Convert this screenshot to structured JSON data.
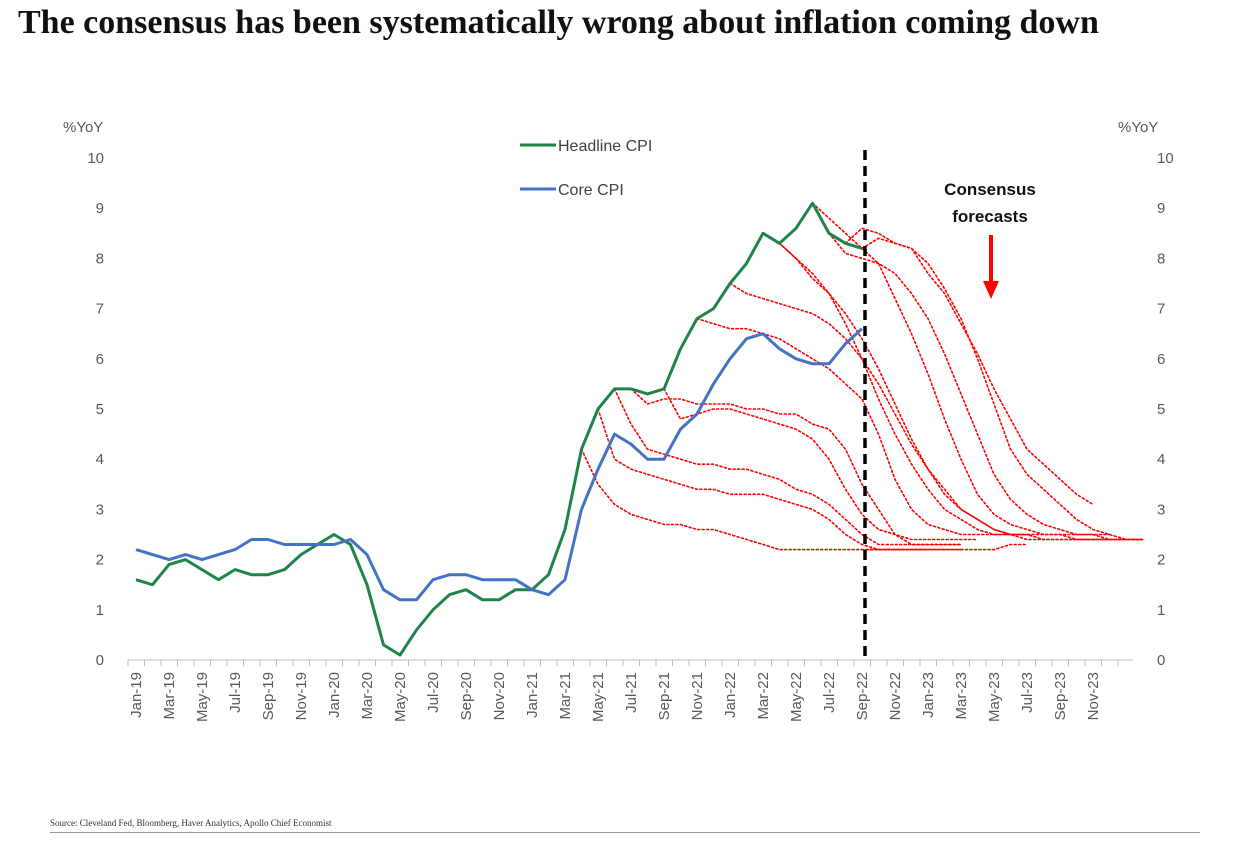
{
  "title": "The consensus has been systematically wrong about inflation coming down",
  "source": "Source: Cleveland Fed, Bloomberg, Haver Analytics, Apollo Chief Economist",
  "chart_data": {
    "type": "line",
    "y_axis_left_label": "%YoY",
    "y_axis_right_label": "%YoY",
    "ylim": [
      0,
      10
    ],
    "yticks": [
      0,
      1,
      2,
      3,
      4,
      5,
      6,
      7,
      8,
      9,
      10
    ],
    "x_start": "Jan-19",
    "x_tick_labels": [
      "Jan-19",
      "Mar-19",
      "May-19",
      "Jul-19",
      "Sep-19",
      "Nov-19",
      "Jan-20",
      "Mar-20",
      "May-20",
      "Jul-20",
      "Sep-20",
      "Nov-20",
      "Jan-21",
      "Mar-21",
      "May-21",
      "Jul-21",
      "Sep-21",
      "Nov-21",
      "Jan-22",
      "Mar-22",
      "May-22",
      "Jul-22",
      "Sep-22",
      "Nov-22",
      "Jan-23",
      "Mar-23",
      "May-23",
      "Jul-23",
      "Sep-23",
      "Nov-23"
    ],
    "x_months_total": 60,
    "grid": false,
    "legend_position": "top-center",
    "series": [
      {
        "name": "Headline CPI",
        "color": "#1e8449",
        "values": [
          1.6,
          1.5,
          1.9,
          2.0,
          1.8,
          1.6,
          1.8,
          1.7,
          1.7,
          1.8,
          2.1,
          2.3,
          2.5,
          2.3,
          1.5,
          0.3,
          0.1,
          0.6,
          1.0,
          1.3,
          1.4,
          1.2,
          1.2,
          1.4,
          1.4,
          1.7,
          2.6,
          4.2,
          5.0,
          5.4,
          5.4,
          5.3,
          5.4,
          6.2,
          6.8,
          7.0,
          7.5,
          7.9,
          8.5,
          8.3,
          8.6,
          9.1,
          8.5,
          8.3,
          8.2
        ]
      },
      {
        "name": "Core CPI",
        "color": "#4472c4",
        "values": [
          2.2,
          2.1,
          2.0,
          2.1,
          2.0,
          2.1,
          2.2,
          2.4,
          2.4,
          2.3,
          2.3,
          2.3,
          2.3,
          2.4,
          2.1,
          1.4,
          1.2,
          1.2,
          1.6,
          1.7,
          1.7,
          1.6,
          1.6,
          1.6,
          1.4,
          1.3,
          1.6,
          3.0,
          3.8,
          4.5,
          4.3,
          4.0,
          4.0,
          4.6,
          4.9,
          5.5,
          6.0,
          6.4,
          6.5,
          6.2,
          6.0,
          5.9,
          5.9,
          6.3,
          6.6
        ]
      }
    ],
    "forecast_color": "#ff0000",
    "forecasts": [
      {
        "start": 27,
        "values": [
          4.2,
          3.5,
          3.1,
          2.9,
          2.8,
          2.7,
          2.7,
          2.6,
          2.6,
          2.5,
          2.4,
          2.3,
          2.2,
          2.2,
          2.2,
          2.2,
          2.2,
          2.2,
          2.2,
          2.2,
          2.2,
          2.2
        ]
      },
      {
        "start": 28,
        "values": [
          5.0,
          4.0,
          3.8,
          3.7,
          3.6,
          3.5,
          3.4,
          3.4,
          3.3,
          3.3,
          3.3,
          3.2,
          3.1,
          3.0,
          2.8,
          2.5,
          2.3,
          2.2,
          2.2,
          2.2,
          2.2,
          2.2,
          2.2
        ]
      },
      {
        "start": 29,
        "values": [
          5.4,
          4.7,
          4.2,
          4.1,
          4.0,
          3.9,
          3.9,
          3.8,
          3.8,
          3.7,
          3.6,
          3.4,
          3.3,
          3.1,
          2.8,
          2.5,
          2.3,
          2.3,
          2.3,
          2.3,
          2.3,
          2.3
        ]
      },
      {
        "start": 30,
        "values": [
          5.4,
          5.1,
          5.2,
          5.2,
          5.1,
          5.1,
          5.1,
          5.0,
          5.0,
          4.9,
          4.9,
          4.7,
          4.6,
          4.2,
          3.5,
          3.0,
          2.5,
          2.3,
          2.3,
          2.3,
          2.3
        ]
      },
      {
        "start": 32,
        "values": [
          5.4,
          4.8,
          4.9,
          5.0,
          5.0,
          4.9,
          4.8,
          4.7,
          4.6,
          4.4,
          4.0,
          3.4,
          2.9,
          2.6,
          2.5,
          2.4,
          2.4,
          2.4,
          2.4,
          2.4
        ]
      },
      {
        "start": 34,
        "values": [
          6.8,
          6.7,
          6.6,
          6.6,
          6.5,
          6.4,
          6.2,
          6.0,
          5.8,
          5.5,
          5.2,
          4.5,
          3.6,
          3.0,
          2.7,
          2.6,
          2.5,
          2.5,
          2.5,
          2.5,
          2.5
        ]
      },
      {
        "start": 36,
        "values": [
          7.5,
          7.3,
          7.2,
          7.1,
          7.0,
          6.9,
          6.7,
          6.4,
          6.0,
          5.5,
          4.9,
          4.3,
          3.8,
          3.4,
          3.0,
          2.8,
          2.6,
          2.5,
          2.5,
          2.5,
          2.5,
          2.5,
          2.5,
          2.5
        ]
      },
      {
        "start": 38,
        "values": [
          8.5,
          8.3,
          8.0,
          7.7,
          7.3,
          6.7,
          6.0,
          5.2,
          4.5,
          3.9,
          3.4,
          3.0,
          2.8,
          2.6,
          2.5,
          2.5,
          2.4,
          2.4,
          2.4,
          2.4,
          2.4,
          2.4,
          2.4
        ]
      },
      {
        "start": 39,
        "values": [
          8.3,
          8.0,
          7.6,
          7.3,
          6.9,
          6.4,
          5.8,
          5.1,
          4.4,
          3.8,
          3.3,
          3.0,
          2.8,
          2.6,
          2.5,
          2.5,
          2.4,
          2.4,
          2.4,
          2.4,
          2.4,
          2.4
        ]
      },
      {
        "start": 41,
        "values": [
          9.1,
          8.8,
          8.5,
          8.2,
          7.9,
          7.2,
          6.5,
          5.7,
          4.8,
          4.0,
          3.3,
          2.9,
          2.7,
          2.6,
          2.5,
          2.5,
          2.4,
          2.4,
          2.4,
          2.4,
          2.4
        ]
      },
      {
        "start": 42,
        "values": [
          8.5,
          8.1,
          8.0,
          7.9,
          7.7,
          7.3,
          6.8,
          6.1,
          5.3,
          4.5,
          3.7,
          3.2,
          2.9,
          2.7,
          2.6,
          2.5,
          2.5,
          2.4,
          2.4,
          2.4
        ]
      },
      {
        "start": 43,
        "values": [
          8.3,
          8.6,
          8.5,
          8.3,
          8.2,
          7.9,
          7.4,
          6.8,
          6.0,
          5.1,
          4.2,
          3.7,
          3.4,
          3.1,
          2.8,
          2.6,
          2.5,
          2.4,
          2.4
        ]
      },
      {
        "start": 44,
        "values": [
          8.2,
          8.4,
          8.3,
          8.2,
          7.7,
          7.3,
          6.7,
          6.1,
          5.4,
          4.8,
          4.2,
          3.9,
          3.6,
          3.3,
          3.1
        ]
      },
      {
        "start": 44,
        "values": [
          2.2,
          2.2,
          2.2,
          2.2,
          2.2,
          2.2,
          2.2,
          2.2,
          2.2,
          2.3,
          2.3
        ]
      }
    ],
    "forecast_start_marker": "Sep-22",
    "annotation": [
      "Consensus",
      "forecasts"
    ]
  }
}
